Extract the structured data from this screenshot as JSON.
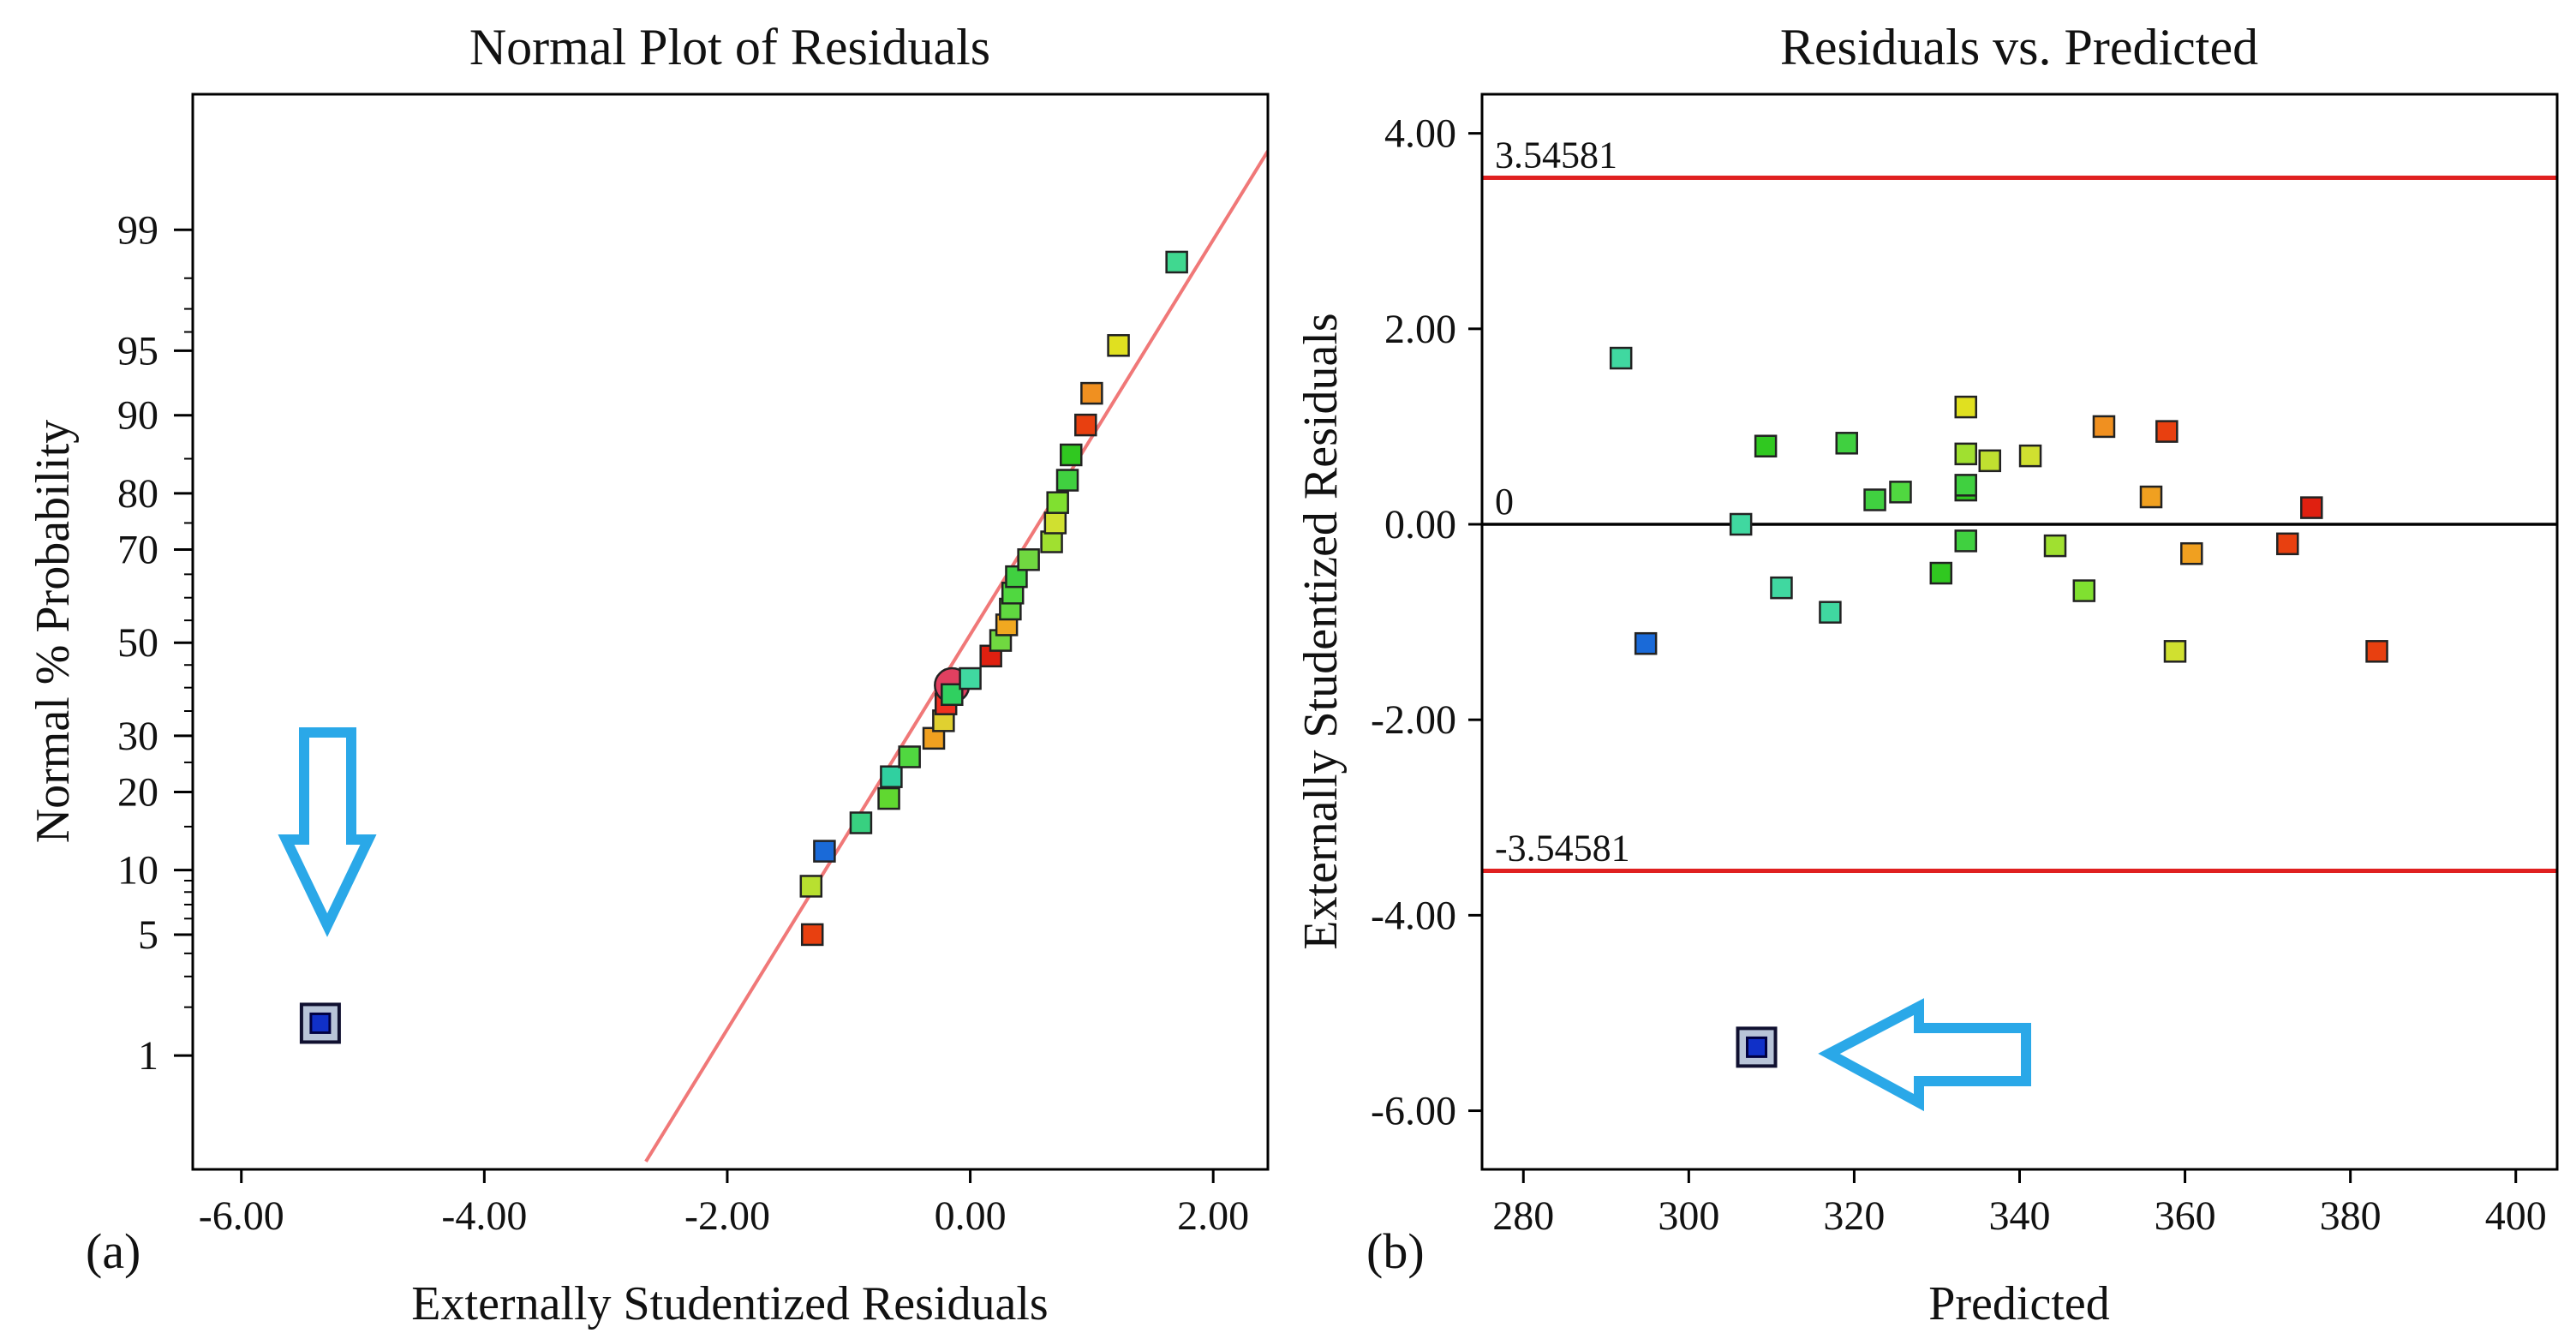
{
  "chart_data": [
    {
      "type": "scatter",
      "panel_label": "(a)",
      "title": "Normal Plot of Residuals",
      "xlabel": "Externally Studentized Residuals",
      "ylabel": "Normal % Probability",
      "xlim": [
        -6.4,
        2.45
      ],
      "x_ticks": [
        -6,
        -4,
        -2,
        0,
        2
      ],
      "x_tick_labels": [
        "-6.00",
        "-4.00",
        "-2.00",
        "0.00",
        "2.00"
      ],
      "y_scale": "normal-probability",
      "ylim_percent": [
        0.15,
        99.9
      ],
      "y_ticks": [
        1,
        5,
        10,
        20,
        30,
        50,
        70,
        80,
        90,
        95,
        99
      ],
      "y_tick_labels": [
        "1",
        "5",
        "10",
        "20",
        "30",
        "50",
        "70",
        "80",
        "90",
        "95",
        "99"
      ],
      "reference_line": {
        "color": "#f07878",
        "x": [
          -2.67,
          2.45
        ],
        "y_percent": [
          0.173,
          99.72
        ]
      },
      "points": [
        {
          "x": -5.35,
          "y": 1.6,
          "color": "#1030c8",
          "highlight": true
        },
        {
          "x": -1.3,
          "y": 5.0,
          "color": "#e84010"
        },
        {
          "x": -1.31,
          "y": 8.5,
          "color": "#b8e030"
        },
        {
          "x": -1.2,
          "y": 12.0,
          "color": "#1a6ad8"
        },
        {
          "x": -0.9,
          "y": 15.5,
          "color": "#38d080"
        },
        {
          "x": -0.67,
          "y": 19.0,
          "color": "#60d830"
        },
        {
          "x": -0.65,
          "y": 22.5,
          "color": "#30d0a0"
        },
        {
          "x": -0.5,
          "y": 26.0,
          "color": "#50d840"
        },
        {
          "x": -0.3,
          "y": 29.5,
          "color": "#f0a020"
        },
        {
          "x": -0.22,
          "y": 33.0,
          "color": "#e0d030"
        },
        {
          "x": -0.2,
          "y": 36.5,
          "color": "#f03020"
        },
        {
          "x": -0.15,
          "y": 40.5,
          "color": "#e04060",
          "ring": true
        },
        {
          "x": -0.15,
          "y": 38.5,
          "color": "#30d060"
        },
        {
          "x": 0.0,
          "y": 42.0,
          "color": "#40d8a0"
        },
        {
          "x": 0.17,
          "y": 47.0,
          "color": "#e02010"
        },
        {
          "x": 0.25,
          "y": 50.5,
          "color": "#70d840"
        },
        {
          "x": 0.3,
          "y": 54.0,
          "color": "#f0a820"
        },
        {
          "x": 0.33,
          "y": 57.5,
          "color": "#60d840"
        },
        {
          "x": 0.35,
          "y": 61.0,
          "color": "#50d840"
        },
        {
          "x": 0.38,
          "y": 64.5,
          "color": "#40d040"
        },
        {
          "x": 0.48,
          "y": 68.0,
          "color": "#70d840"
        },
        {
          "x": 0.67,
          "y": 71.5,
          "color": "#a0e030"
        },
        {
          "x": 0.7,
          "y": 75.0,
          "color": "#d0e030"
        },
        {
          "x": 0.72,
          "y": 78.5,
          "color": "#80e030"
        },
        {
          "x": 0.8,
          "y": 82.0,
          "color": "#40d040"
        },
        {
          "x": 0.83,
          "y": 85.5,
          "color": "#30c820"
        },
        {
          "x": 0.95,
          "y": 89.0,
          "color": "#e84010"
        },
        {
          "x": 1.0,
          "y": 92.0,
          "color": "#f09020"
        },
        {
          "x": 1.22,
          "y": 95.3,
          "color": "#e0e020"
        },
        {
          "x": 1.7,
          "y": 98.4,
          "color": "#40d890"
        }
      ]
    },
    {
      "type": "scatter",
      "panel_label": "(b)",
      "title": "Residuals vs. Predicted",
      "xlabel": "Predicted",
      "ylabel": "Externally Studentized Residuals",
      "xlim": [
        275,
        405
      ],
      "ylim": [
        -6.6,
        4.4
      ],
      "x_ticks": [
        280,
        300,
        320,
        340,
        360,
        380,
        400
      ],
      "x_tick_labels": [
        "280",
        "300",
        "320",
        "340",
        "360",
        "380",
        "400"
      ],
      "y_ticks": [
        -6,
        -4,
        -2,
        0,
        2,
        4
      ],
      "y_tick_labels": [
        "-6.00",
        "-4.00",
        "-2.00",
        "0.00",
        "2.00",
        "4.00"
      ],
      "limit_lines": [
        {
          "y": 3.54581,
          "label": "3.54581",
          "color": "#e02020"
        },
        {
          "y": 0,
          "label": "0",
          "color": "#000000"
        },
        {
          "y": -3.54581,
          "label": "-3.54581",
          "color": "#e02020"
        }
      ],
      "points": [
        {
          "x": 308.2,
          "y": -5.35,
          "color": "#1030c8",
          "highlight": true
        },
        {
          "x": 291.8,
          "y": 1.7,
          "color": "#40d8a0"
        },
        {
          "x": 294.8,
          "y": -1.22,
          "color": "#1a6ad8"
        },
        {
          "x": 306.3,
          "y": 0.0,
          "color": "#40d8a0"
        },
        {
          "x": 309.3,
          "y": 0.8,
          "color": "#30c820"
        },
        {
          "x": 311.2,
          "y": -0.65,
          "color": "#40d8a0"
        },
        {
          "x": 317.1,
          "y": -0.9,
          "color": "#40d8a0"
        },
        {
          "x": 319.1,
          "y": 0.83,
          "color": "#40d040"
        },
        {
          "x": 322.5,
          "y": 0.25,
          "color": "#40d040"
        },
        {
          "x": 325.6,
          "y": 0.33,
          "color": "#50d840"
        },
        {
          "x": 330.5,
          "y": -0.5,
          "color": "#30c820"
        },
        {
          "x": 333.5,
          "y": 1.2,
          "color": "#e0e020"
        },
        {
          "x": 333.5,
          "y": 0.72,
          "color": "#a0e030"
        },
        {
          "x": 333.5,
          "y": 0.35,
          "color": "#30c820"
        },
        {
          "x": 333.5,
          "y": 0.4,
          "color": "#40d040"
        },
        {
          "x": 333.5,
          "y": -0.17,
          "color": "#40d040"
        },
        {
          "x": 336.4,
          "y": 0.65,
          "color": "#c0e030"
        },
        {
          "x": 341.3,
          "y": 0.7,
          "color": "#d0e030"
        },
        {
          "x": 344.3,
          "y": -0.22,
          "color": "#a0e030"
        },
        {
          "x": 347.8,
          "y": -0.68,
          "color": "#80e030"
        },
        {
          "x": 350.2,
          "y": 1.0,
          "color": "#f09020"
        },
        {
          "x": 355.9,
          "y": 0.28,
          "color": "#f0a020"
        },
        {
          "x": 357.8,
          "y": 0.95,
          "color": "#e84010"
        },
        {
          "x": 358.8,
          "y": -1.3,
          "color": "#d0e030"
        },
        {
          "x": 360.8,
          "y": -0.3,
          "color": "#f0a020"
        },
        {
          "x": 372.4,
          "y": -0.2,
          "color": "#e84010"
        },
        {
          "x": 375.3,
          "y": 0.17,
          "color": "#e02010"
        },
        {
          "x": 383.2,
          "y": -1.3,
          "color": "#e84010"
        }
      ]
    }
  ]
}
